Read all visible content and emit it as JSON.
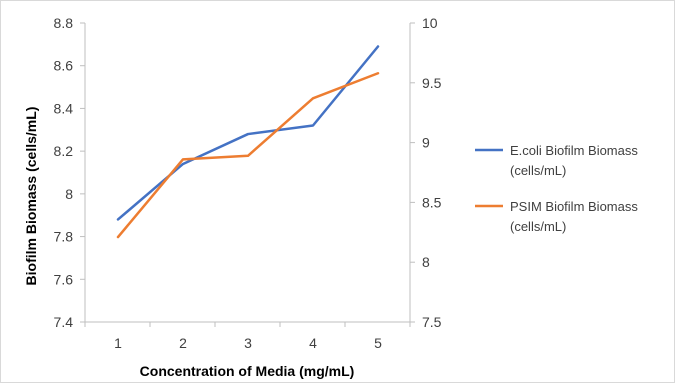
{
  "chart_data": {
    "type": "line",
    "title": "",
    "xlabel": "Concentration of Media (mg/mL)",
    "ylabel": "Biofilm Biomass (cells/mL)",
    "y2label": "",
    "categories": [
      "1",
      "2",
      "3",
      "4",
      "5"
    ],
    "ylim": [
      7.4,
      8.8
    ],
    "y_ticks": [
      "7.4",
      "7.6",
      "7.8",
      "8",
      "8.2",
      "8.4",
      "8.6",
      "8.8"
    ],
    "y2lim": [
      7.5,
      10
    ],
    "y2_ticks": [
      "7.5",
      "8",
      "8.5",
      "9",
      "9.5",
      "10"
    ],
    "grid": false,
    "legend_position": "right",
    "series": [
      {
        "name": "E.coli Biofilm Biomass (cells/mL)",
        "legend_lines": [
          "E.coli Biofilm Biomass",
          "(cells/mL)"
        ],
        "axis": "left",
        "color": "#4472c4",
        "values": [
          7.88,
          8.14,
          8.28,
          8.32,
          8.69
        ]
      },
      {
        "name": "PSIM Biofilm Biomass (cells/mL)",
        "legend_lines": [
          "PSIM Biofilm Biomass",
          "(cells/mL)"
        ],
        "axis": "right",
        "color": "#ed7d31",
        "values": [
          8.21,
          8.86,
          8.89,
          9.37,
          9.58
        ]
      }
    ]
  }
}
